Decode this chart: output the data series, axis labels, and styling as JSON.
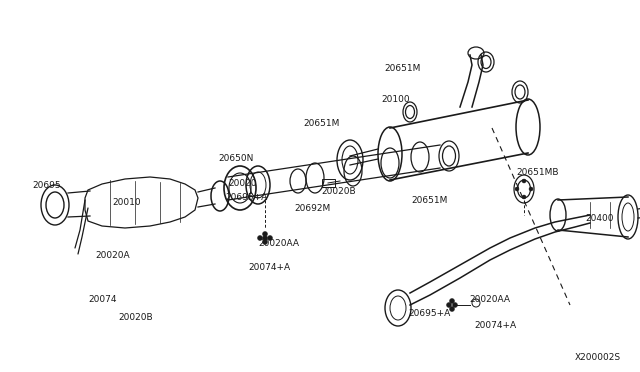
{
  "bg_color": "#ffffff",
  "line_color": "#1a1a1a",
  "text_color": "#1a1a1a",
  "diagram_id": "X200002S",
  "lw": 0.9,
  "labels": [
    [
      "20695",
      32,
      185
    ],
    [
      "20010",
      112,
      202
    ],
    [
      "20020A",
      95,
      255
    ],
    [
      "20074",
      88,
      300
    ],
    [
      "20020B",
      118,
      318
    ],
    [
      "20650N",
      218,
      158
    ],
    [
      "20020",
      228,
      183
    ],
    [
      "20695+A",
      225,
      197
    ],
    [
      "20020AA",
      258,
      243
    ],
    [
      "20074+A",
      248,
      268
    ],
    [
      "20692M",
      294,
      208
    ],
    [
      "20020B",
      321,
      191
    ],
    [
      "20651M",
      303,
      123
    ],
    [
      "20651M",
      411,
      200
    ],
    [
      "20651M",
      384,
      68
    ],
    [
      "20100",
      381,
      99
    ],
    [
      "20651MB",
      516,
      172
    ],
    [
      "20400",
      585,
      218
    ],
    [
      "20695+A",
      408,
      313
    ],
    [
      "20020AA",
      469,
      300
    ],
    [
      "20074+A",
      474,
      325
    ]
  ]
}
